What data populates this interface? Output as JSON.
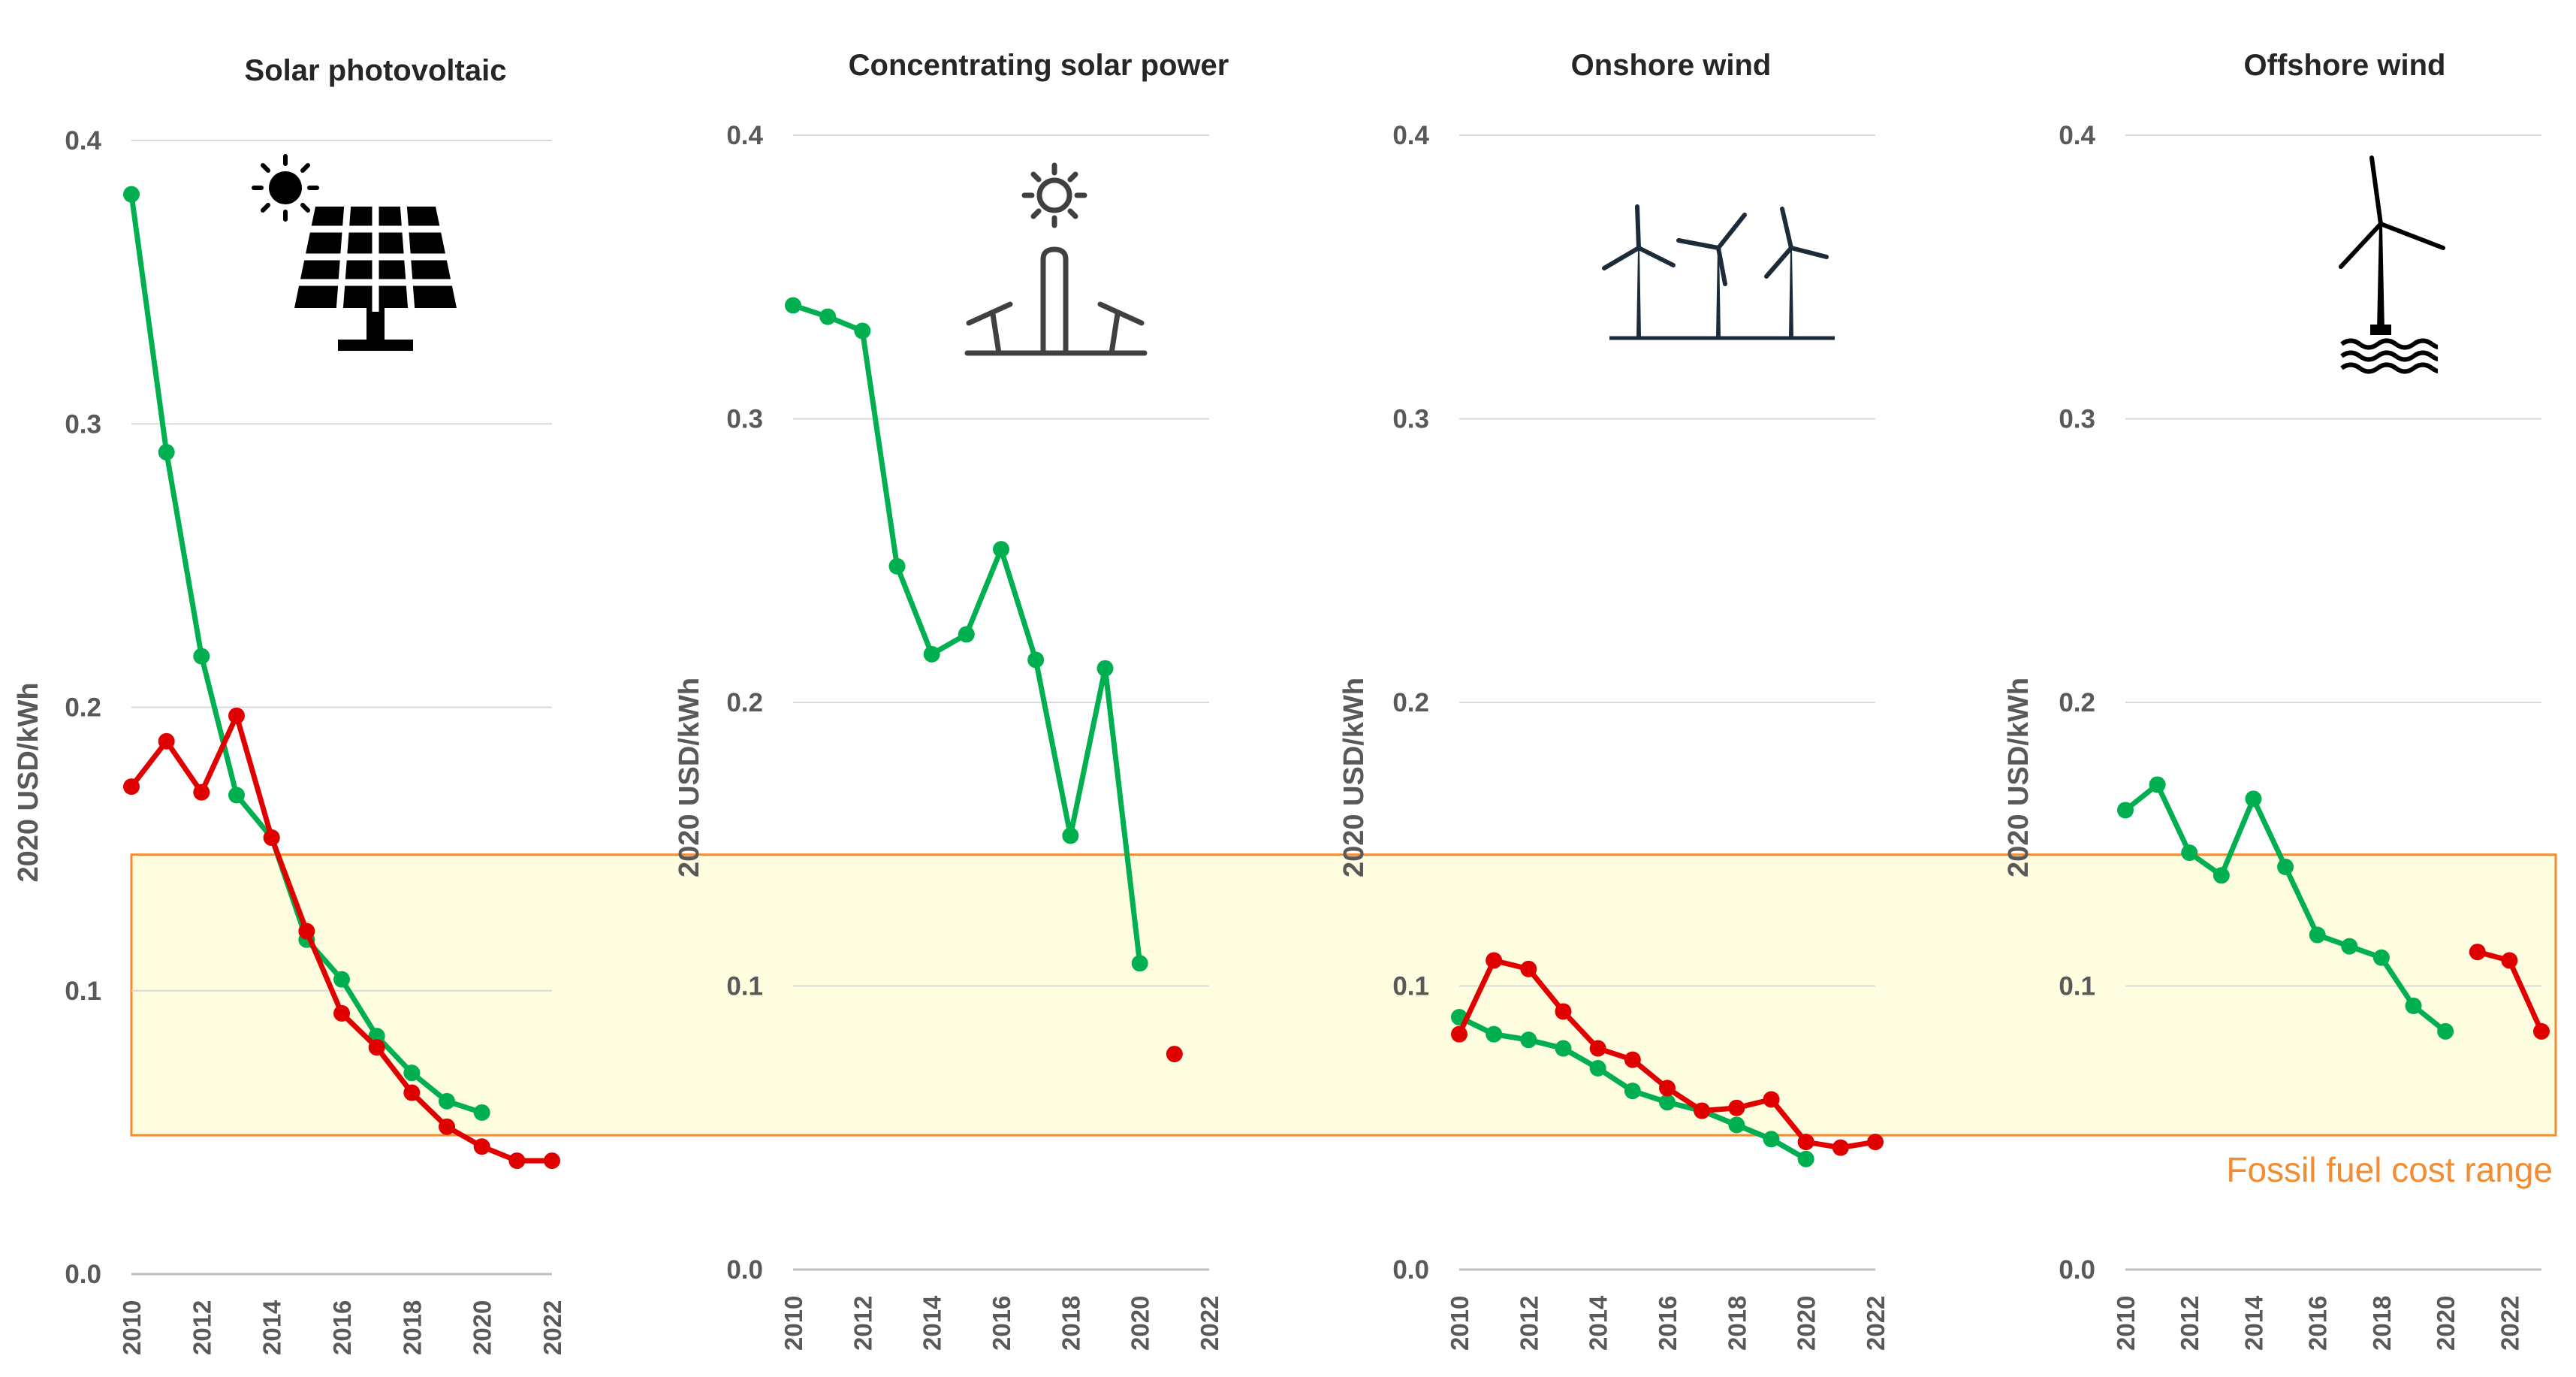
{
  "colors": {
    "green": "#00b050",
    "red": "#e00000",
    "blue": "#2e6fd4",
    "band_fill": "#fefde0",
    "band_stroke": "#f28b32",
    "band_text": "#f28b32"
  },
  "chart_data": {
    "type": "line",
    "band": {
      "label": "Fossil fuel cost range",
      "ymin": 0.049,
      "ymax": 0.148
    },
    "yticks": [
      "0.0",
      "0.1",
      "0.2",
      "0.3",
      "0.4"
    ],
    "xticks": [
      "2010",
      "2012",
      "2014",
      "2016",
      "2018",
      "2020",
      "2022"
    ],
    "panels": [
      {
        "title": "Solar photovoltaic",
        "ylabel": "2020 USD/kWh",
        "icon": "solar-panel-icon",
        "ylim": [
          0,
          0.4
        ],
        "xlim": [
          2010,
          2022
        ],
        "series": [
          {
            "name": "green",
            "color": "green",
            "points": [
              [
                2010,
                0.381
              ],
              [
                2011,
                0.29
              ],
              [
                2012,
                0.218
              ],
              [
                2013,
                0.169
              ],
              [
                2014,
                0.154
              ],
              [
                2015,
                0.118
              ],
              [
                2016,
                0.104
              ],
              [
                2017,
                0.084
              ],
              [
                2018,
                0.071
              ],
              [
                2019,
                0.061
              ],
              [
                2020,
                0.057
              ]
            ]
          },
          {
            "name": "red",
            "color": "red",
            "points": [
              [
                2010,
                0.172
              ],
              [
                2011,
                0.188
              ],
              [
                2012,
                0.17
              ],
              [
                2013,
                0.197
              ],
              [
                2014,
                0.154
              ],
              [
                2015,
                0.121
              ],
              [
                2016,
                0.092
              ],
              [
                2017,
                0.08
              ],
              [
                2018,
                0.064
              ],
              [
                2019,
                0.052
              ],
              [
                2020,
                0.045
              ],
              [
                2021,
                0.04
              ],
              [
                2022,
                0.04
              ]
            ]
          }
        ]
      },
      {
        "title": "Concentrating solar power",
        "ylabel": "2020 USD/kWh",
        "icon": "csp-tower-icon",
        "ylim": [
          0,
          0.4
        ],
        "xlim": [
          2010,
          2022
        ],
        "series": [
          {
            "name": "green",
            "color": "green",
            "points": [
              [
                2010,
                0.34
              ],
              [
                2011,
                0.336
              ],
              [
                2012,
                0.331
              ],
              [
                2013,
                0.248
              ],
              [
                2014,
                0.217
              ],
              [
                2015,
                0.224
              ],
              [
                2016,
                0.254
              ],
              [
                2017,
                0.215
              ],
              [
                2018,
                0.153
              ],
              [
                2019,
                0.212
              ],
              [
                2020,
                0.108
              ]
            ]
          },
          {
            "name": "red",
            "color": "red",
            "points": [
              [
                2021,
                0.076
              ]
            ]
          }
        ]
      },
      {
        "title": "Onshore wind",
        "ylabel": "2020 USD/kWh",
        "icon": "onshore-wind-icon",
        "ylim": [
          0,
          0.4
        ],
        "xlim": [
          2010,
          2022
        ],
        "series": [
          {
            "name": "blue",
            "color": "blue",
            "points": [
              [
                2010,
                0.089
              ],
              [
                2011,
                0.083
              ],
              [
                2012,
                0.081
              ],
              [
                2013,
                0.078
              ],
              [
                2014,
                0.071
              ],
              [
                2015,
                0.063
              ],
              [
                2016,
                0.059
              ],
              [
                2017,
                0.056
              ],
              [
                2018,
                0.051
              ],
              [
                2019,
                0.046
              ],
              [
                2020,
                0.039
              ]
            ]
          },
          {
            "name": "green",
            "color": "green",
            "points": [
              [
                2010,
                0.089
              ],
              [
                2011,
                0.083
              ],
              [
                2012,
                0.081
              ],
              [
                2013,
                0.078
              ],
              [
                2014,
                0.071
              ],
              [
                2015,
                0.063
              ],
              [
                2016,
                0.059
              ],
              [
                2017,
                0.056
              ],
              [
                2018,
                0.051
              ],
              [
                2019,
                0.046
              ],
              [
                2020,
                0.039
              ]
            ]
          },
          {
            "name": "red",
            "color": "red",
            "points": [
              [
                2010,
                0.083
              ],
              [
                2011,
                0.109
              ],
              [
                2012,
                0.106
              ],
              [
                2013,
                0.091
              ],
              [
                2014,
                0.078
              ],
              [
                2015,
                0.074
              ],
              [
                2016,
                0.064
              ],
              [
                2017,
                0.056
              ],
              [
                2018,
                0.057
              ],
              [
                2019,
                0.06
              ],
              [
                2020,
                0.045
              ],
              [
                2021,
                0.043
              ],
              [
                2022,
                0.045
              ]
            ]
          }
        ]
      },
      {
        "title": "Offshore wind",
        "ylabel": "2020 USD/kWh",
        "icon": "offshore-wind-icon",
        "ylim": [
          0,
          0.4
        ],
        "xlim": [
          2010,
          2023
        ],
        "series": [
          {
            "name": "green",
            "color": "green",
            "points": [
              [
                2010,
                0.162
              ],
              [
                2011,
                0.171
              ],
              [
                2012,
                0.147
              ],
              [
                2013,
                0.139
              ],
              [
                2014,
                0.166
              ],
              [
                2015,
                0.142
              ],
              [
                2016,
                0.118
              ],
              [
                2017,
                0.114
              ],
              [
                2018,
                0.11
              ],
              [
                2019,
                0.093
              ],
              [
                2020,
                0.084
              ]
            ]
          },
          {
            "name": "red",
            "color": "red",
            "points": [
              [
                2021,
                0.112
              ],
              [
                2022,
                0.109
              ],
              [
                2023,
                0.084
              ]
            ]
          }
        ]
      }
    ]
  }
}
